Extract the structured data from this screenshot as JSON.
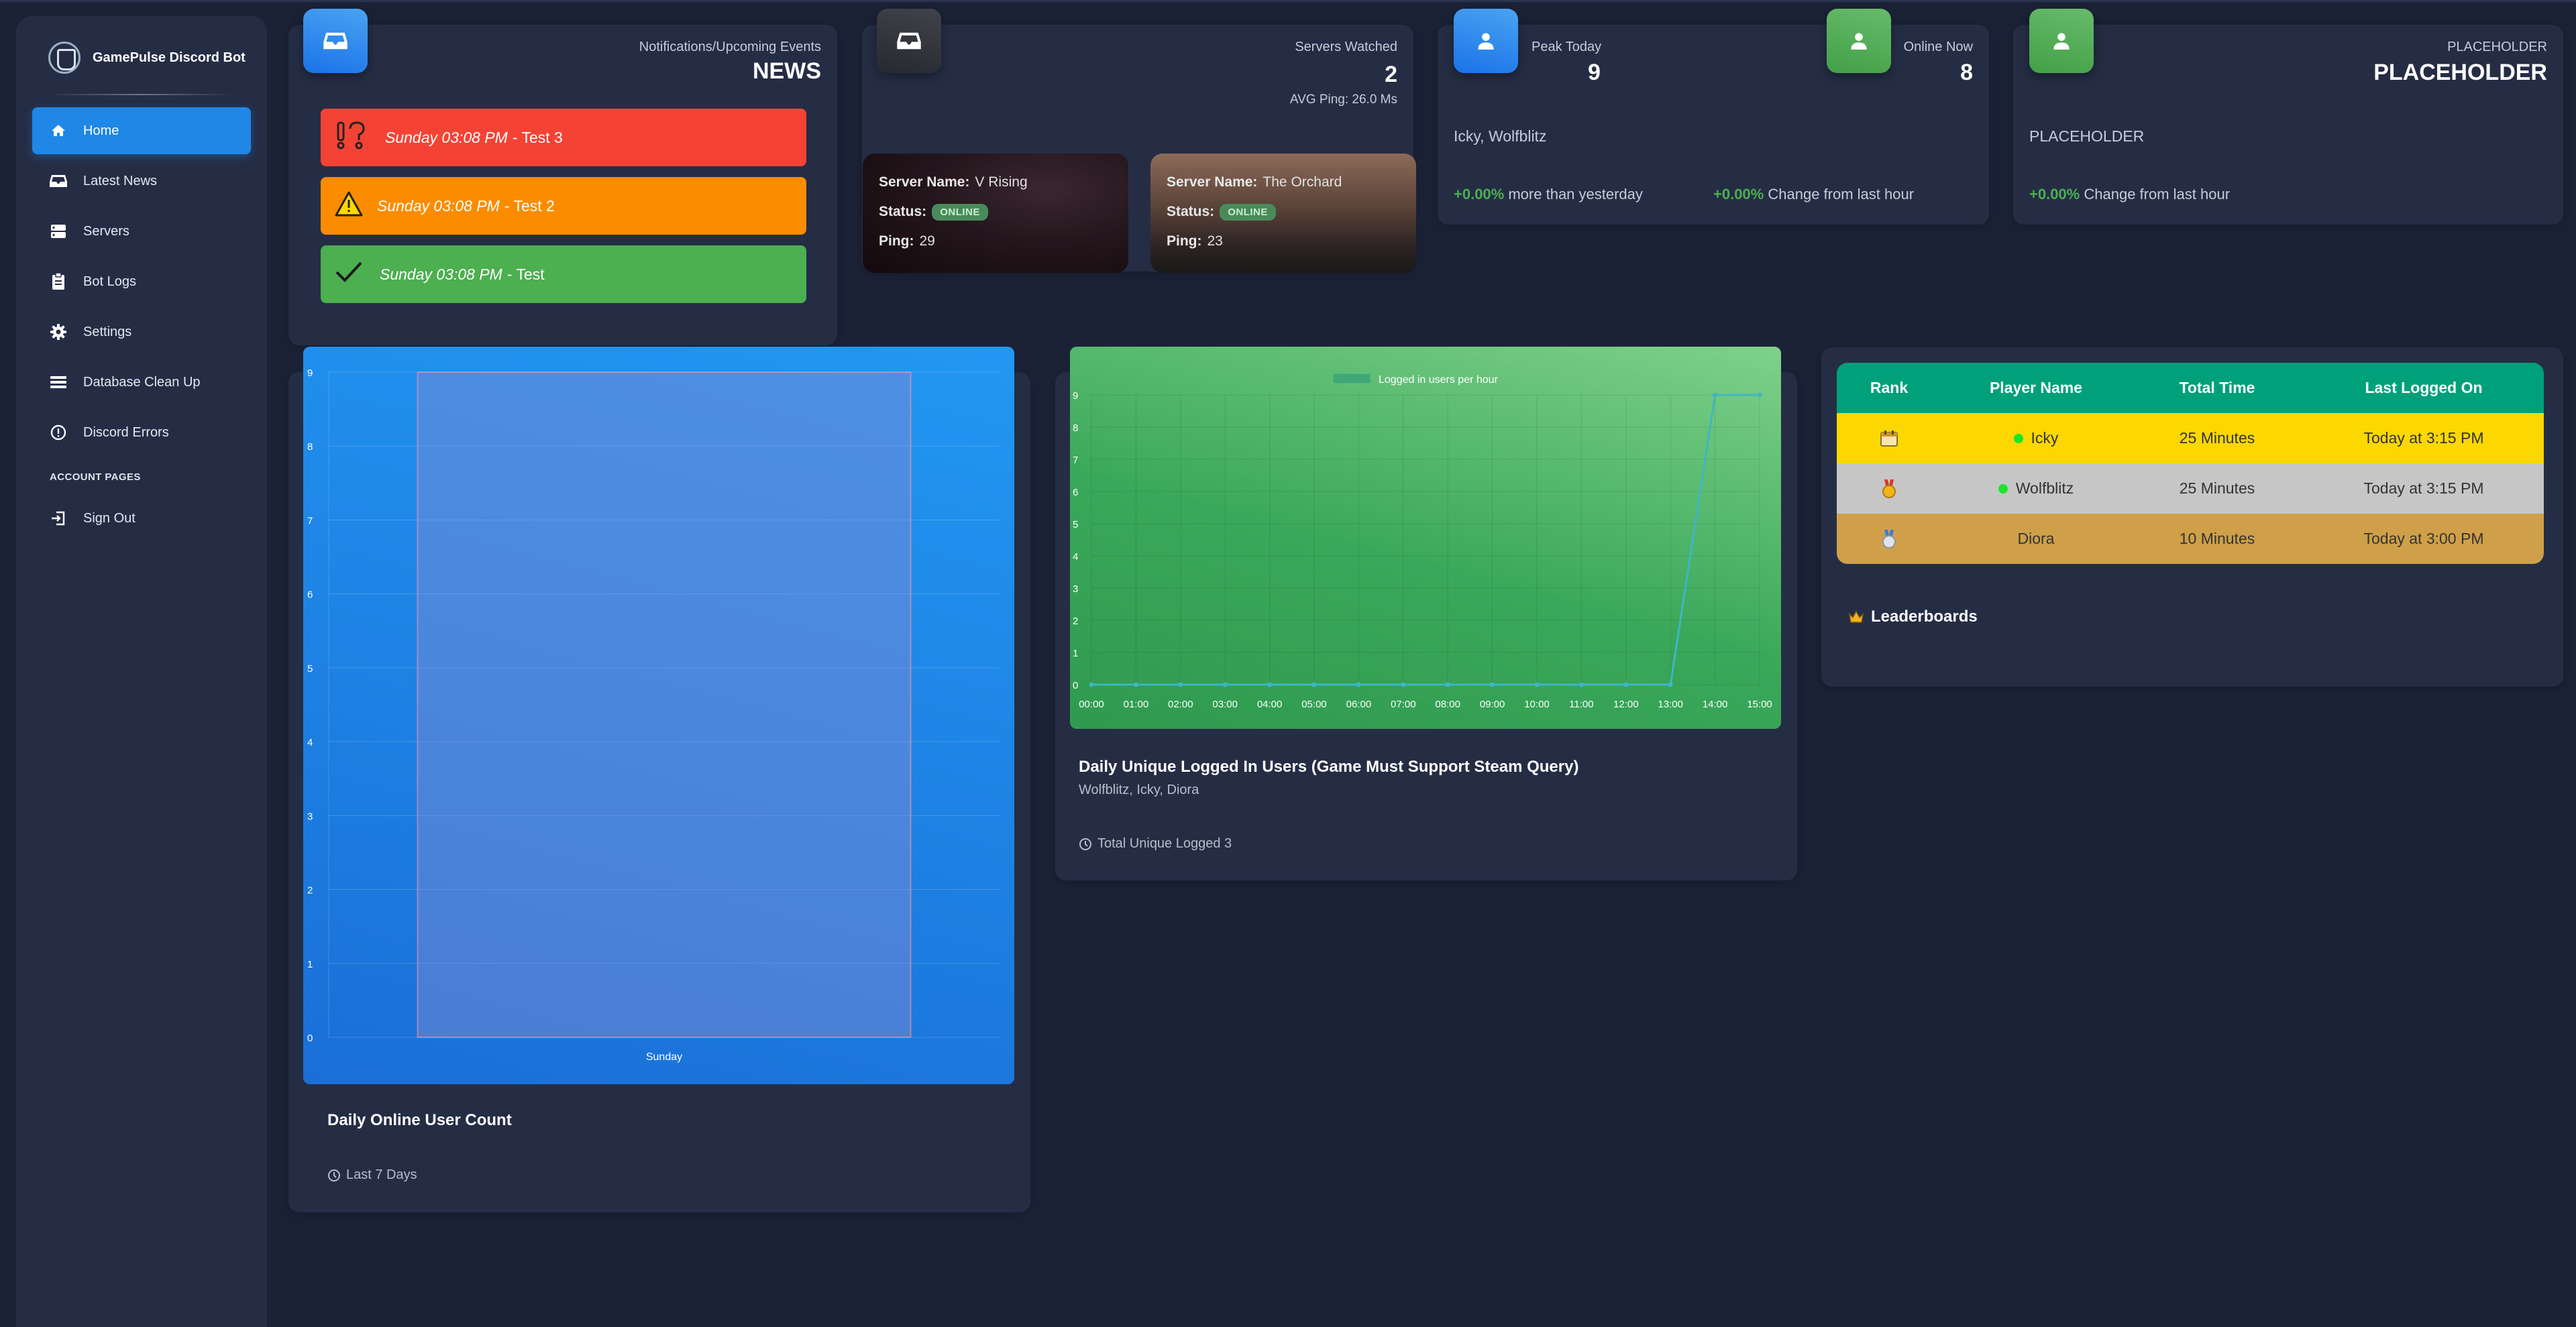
{
  "sidebar": {
    "brand": "GamePulse Discord Bot",
    "items": [
      {
        "label": "Home",
        "icon": "home-icon",
        "active": true
      },
      {
        "label": "Latest News",
        "icon": "inbox-icon"
      },
      {
        "label": "Servers",
        "icon": "server-icon"
      },
      {
        "label": "Bot Logs",
        "icon": "clipboard-icon"
      },
      {
        "label": "Settings",
        "icon": "gear-icon"
      },
      {
        "label": "Database Clean Up",
        "icon": "list-icon"
      }
    ],
    "discord_errors": "Discord Errors",
    "account_heading": "ACCOUNT PAGES",
    "sign_out": "Sign Out"
  },
  "news": {
    "label": "Notifications/Upcoming Events",
    "title": "NEWS",
    "alerts": [
      {
        "time": "Sunday 03:08 PM",
        "name": "- Test 3",
        "color": "#f44335",
        "icon": "exclamation-question-icon"
      },
      {
        "time": "Sunday 03:08 PM",
        "name": "- Test 2",
        "color": "#fb8c00",
        "icon": "warning-icon"
      },
      {
        "time": "Sunday 03:08 PM",
        "name": "- Test",
        "color": "#4caf50",
        "icon": "checkmark-icon"
      }
    ]
  },
  "servers": {
    "label": "Servers Watched",
    "count": "2",
    "ping": "AVG Ping: 26.0 Ms",
    "name_label": "Server Name:",
    "status_label": "Status:",
    "ping_label": "Ping:",
    "list": [
      {
        "name": "V Rising",
        "status": "ONLINE",
        "ping": "29"
      },
      {
        "name": "The Orchard",
        "status": "ONLINE",
        "ping": "23"
      }
    ]
  },
  "players": {
    "peak_label": "Peak Today",
    "peak": "9",
    "online_label": "Online Now",
    "online": "8",
    "names": "Icky, Wolfblitz",
    "pct1": "+0.00%",
    "pct1_text": "more than yesterday",
    "pct2": "+0.00%",
    "pct2_text": "Change from last hour"
  },
  "placeholder": {
    "label": "PLACEHOLDER",
    "title": "PLACEHOLDER",
    "body": "PLACEHOLDER",
    "pct": "+0.00%",
    "pct_text": "Change from last hour"
  },
  "daily_chart": {
    "title": "Daily Online User Count",
    "footer": "Last 7 Days"
  },
  "hourly_chart": {
    "title": "Daily Unique Logged In Users (Game Must Support Steam Query)",
    "subtitle": "Wolfblitz, Icky, Diora",
    "footer": "Total Unique Logged 3"
  },
  "chart_data": [
    {
      "type": "bar",
      "categories": [
        "Sunday"
      ],
      "values": [
        9
      ],
      "ylim": [
        0,
        9
      ],
      "yticks": [
        "0",
        "1",
        "2",
        "3",
        "4",
        "5",
        "6",
        "7",
        "8",
        "9"
      ],
      "title": "",
      "xlabel": "",
      "ylabel": "",
      "grid": true
    },
    {
      "type": "line",
      "x": [
        "00:00",
        "01:00",
        "02:00",
        "03:00",
        "04:00",
        "05:00",
        "06:00",
        "07:00",
        "08:00",
        "09:00",
        "10:00",
        "11:00",
        "12:00",
        "13:00",
        "14:00",
        "15:00"
      ],
      "series": [
        {
          "name": "Logged in users per hour",
          "values": [
            0,
            0,
            0,
            0,
            0,
            0,
            0,
            0,
            0,
            0,
            0,
            0,
            0,
            0,
            9,
            9
          ]
        }
      ],
      "ylim": [
        0,
        9
      ],
      "yticks": [
        "0",
        "1",
        "2",
        "3",
        "4",
        "5",
        "6",
        "7",
        "8",
        "9"
      ],
      "title": "",
      "xlabel": "",
      "ylabel": "",
      "grid": true,
      "legend": "top"
    }
  ],
  "leaderboard": {
    "title": "Leaderboards",
    "headers": [
      "Rank",
      "Player Name",
      "Total Time",
      "Last Logged On"
    ],
    "rows": [
      {
        "rank_icon": "calendar-icon",
        "player": "Icky",
        "online": true,
        "time": "25 Minutes",
        "last": "Today at 3:15 PM",
        "color": "#fcd700"
      },
      {
        "rank_icon": "gold-medal-icon",
        "player": "Wolfblitz",
        "online": true,
        "time": "25 Minutes",
        "last": "Today at 3:15 PM",
        "color": "#c6c6c6"
      },
      {
        "rank_icon": "silver-medal-icon",
        "player": "Diora",
        "online": false,
        "time": "10 Minutes",
        "last": "Today at 3:00 PM",
        "color": "#cfa049"
      }
    ]
  }
}
